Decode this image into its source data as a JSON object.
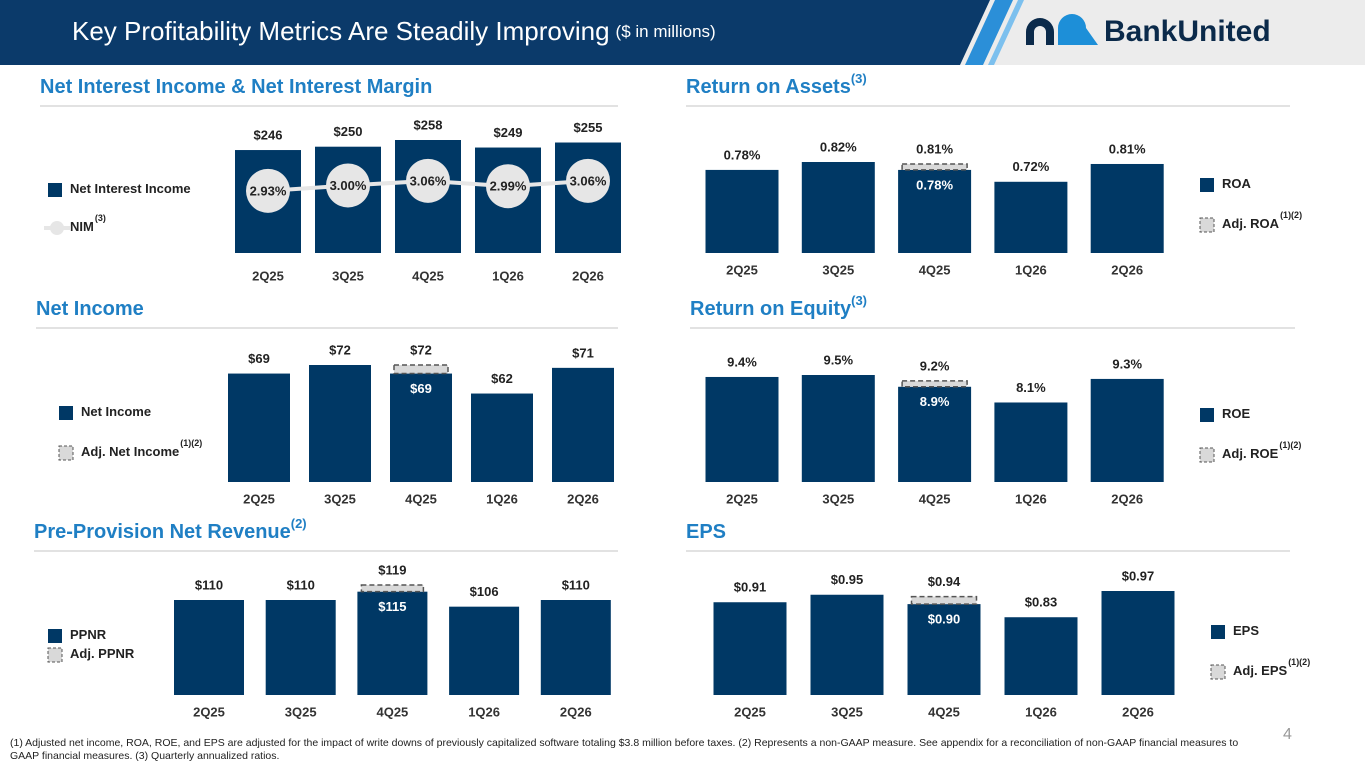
{
  "header": {
    "title": "Key Profitability Metrics Are Steadily Improving",
    "subtitle": "($ in millions)",
    "logo": "BankUnited"
  },
  "chart_data": [
    {
      "type": "bar",
      "title": "Net Interest Income & Net Interest Margin",
      "categories": [
        "2Q25",
        "3Q25",
        "4Q25",
        "1Q26",
        "2Q26"
      ],
      "series": [
        {
          "name": "Net Interest Income",
          "color": "#003865",
          "values": [
            246,
            250,
            258,
            249,
            255
          ],
          "value_labels": [
            "$246",
            "$250",
            "$258",
            "$249",
            "$255"
          ]
        },
        {
          "name": "NIM",
          "name_note": "(3)",
          "type": "line",
          "axis": "y2",
          "color": "#e6e6e6",
          "values": [
            2.93,
            3.0,
            3.06,
            2.99,
            3.06
          ],
          "value_labels": [
            "2.93%",
            "3.00%",
            "3.06%",
            "2.99%",
            "3.06%"
          ]
        }
      ]
    },
    {
      "type": "bar",
      "title": "Return on Assets",
      "title_note": "(3)",
      "categories": [
        "2Q25",
        "3Q25",
        "4Q25",
        "1Q26",
        "2Q26"
      ],
      "series": [
        {
          "name": "ROA",
          "color": "#003865",
          "values": [
            0.78,
            0.82,
            0.78,
            0.72,
            0.81
          ],
          "value_labels": [
            "0.78%",
            "0.82%",
            "0.78%",
            "0.72%",
            "0.81%"
          ]
        },
        {
          "name": "Adj. ROA",
          "name_note": "(1)(2)",
          "style": "dashed",
          "color": "#d9d9d9",
          "values": [
            null,
            null,
            0.81,
            null,
            null
          ],
          "value_labels": [
            null,
            null,
            "0.81%",
            null,
            null
          ]
        }
      ]
    },
    {
      "type": "bar",
      "title": "Net Income",
      "categories": [
        "2Q25",
        "3Q25",
        "4Q25",
        "1Q26",
        "2Q26"
      ],
      "series": [
        {
          "name": "Net Income",
          "color": "#003865",
          "values": [
            69,
            72,
            69,
            62,
            71
          ],
          "value_labels": [
            "$69",
            "$72",
            "$69",
            "$62",
            "$71"
          ]
        },
        {
          "name": "Adj. Net Income",
          "name_note": "(1)(2)",
          "style": "dashed",
          "color": "#d9d9d9",
          "values": [
            null,
            null,
            72,
            null,
            null
          ],
          "value_labels": [
            null,
            null,
            "$72",
            null,
            null
          ]
        }
      ]
    },
    {
      "type": "bar",
      "title": "Return on Equity",
      "title_note": "(3)",
      "categories": [
        "2Q25",
        "3Q25",
        "4Q25",
        "1Q26",
        "2Q26"
      ],
      "series": [
        {
          "name": "ROE",
          "color": "#003865",
          "values": [
            9.4,
            9.5,
            8.9,
            8.1,
            9.3
          ],
          "value_labels": [
            "9.4%",
            "9.5%",
            "8.9%",
            "8.1%",
            "9.3%"
          ]
        },
        {
          "name": "Adj. ROE",
          "name_note": "(1)(2)",
          "style": "dashed",
          "color": "#d9d9d9",
          "values": [
            null,
            null,
            9.2,
            null,
            null
          ],
          "value_labels": [
            null,
            null,
            "9.2%",
            null,
            null
          ]
        }
      ]
    },
    {
      "type": "bar",
      "title": "Pre-Provision Net Revenue",
      "title_note": "(2)",
      "categories": [
        "2Q25",
        "3Q25",
        "4Q25",
        "1Q26",
        "2Q26"
      ],
      "series": [
        {
          "name": "PPNR",
          "color": "#003865",
          "values": [
            110,
            110,
            115,
            106,
            110
          ],
          "value_labels": [
            "$110",
            "$110",
            "$115",
            "$106",
            "$110"
          ]
        },
        {
          "name": "Adj. PPNR",
          "style": "dashed",
          "color": "#d9d9d9",
          "values": [
            null,
            null,
            119,
            null,
            null
          ],
          "value_labels": [
            null,
            null,
            "$119",
            null,
            null
          ]
        }
      ]
    },
    {
      "type": "bar",
      "title": "EPS",
      "categories": [
        "2Q25",
        "3Q25",
        "4Q25",
        "1Q26",
        "2Q26"
      ],
      "series": [
        {
          "name": "EPS",
          "color": "#003865",
          "values": [
            0.91,
            0.95,
            0.9,
            0.83,
            0.97
          ],
          "value_labels": [
            "$0.91",
            "$0.95",
            "$0.90",
            "$0.83",
            "$0.97"
          ]
        },
        {
          "name": "Adj. EPS",
          "name_note": "(1)(2)",
          "style": "dashed",
          "color": "#d9d9d9",
          "values": [
            null,
            null,
            0.94,
            null,
            null
          ],
          "value_labels": [
            null,
            null,
            "$0.94",
            null,
            null
          ]
        }
      ]
    }
  ],
  "page_number": "4",
  "footnote": "(1)  Adjusted net income, ROA, ROE, and EPS are adjusted for the impact of write downs of previously capitalized software totaling $3.8 million before taxes.  (2) Represents a non-GAAP measure. See appendix for a reconciliation of non-GAAP financial measures to GAAP financial measures.  (3) Quarterly annualized ratios."
}
